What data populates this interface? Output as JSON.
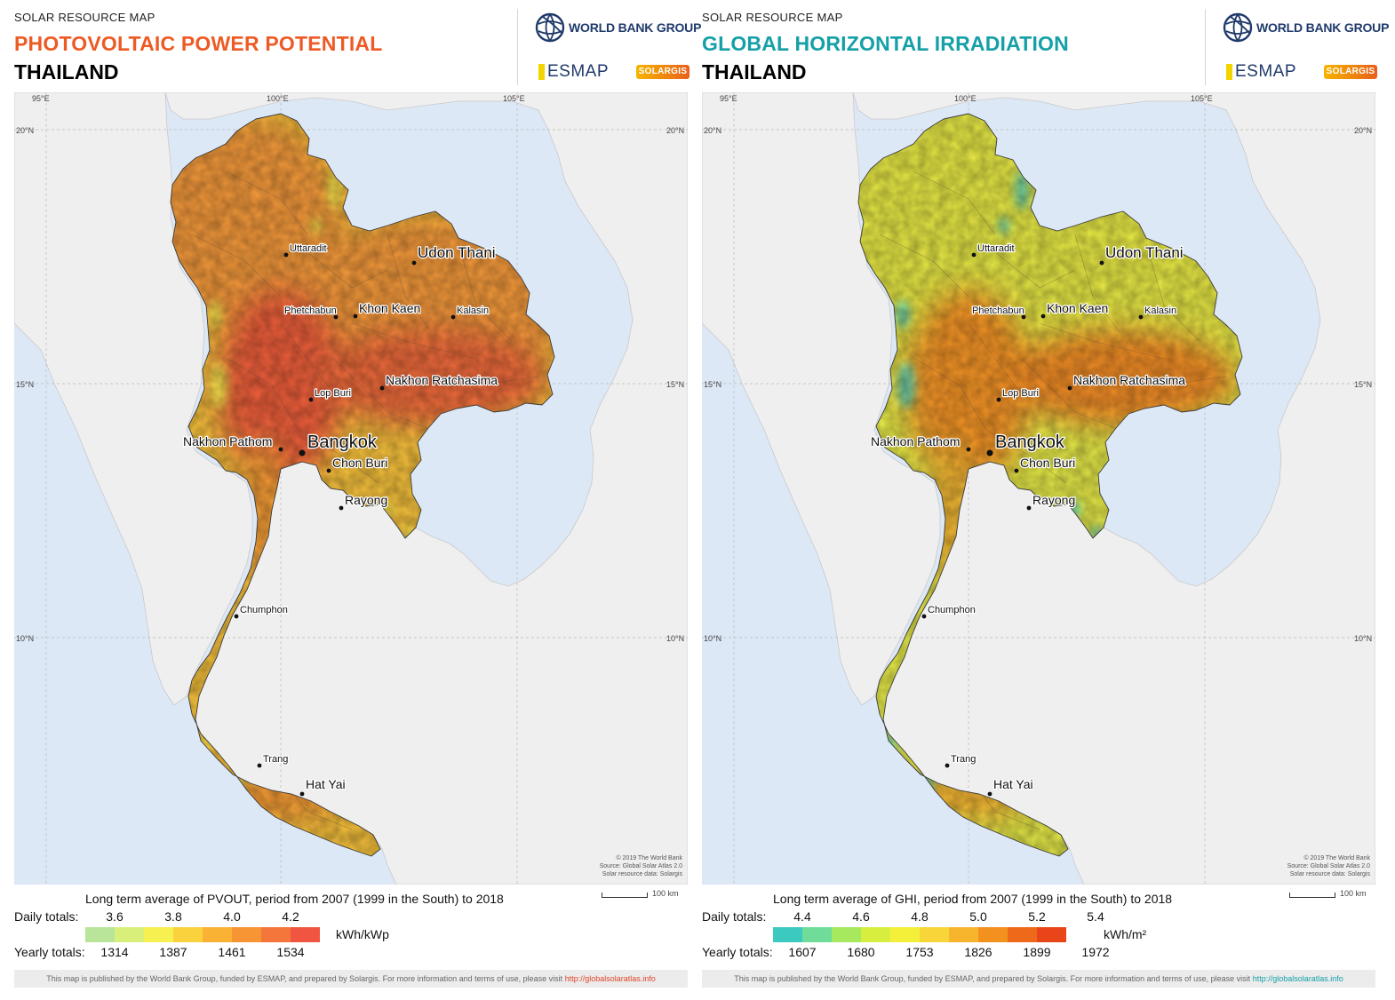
{
  "panels": [
    {
      "id": "pvout",
      "kicker": "SOLAR RESOURCE MAP",
      "title": "PHOTOVOLTAIC POWER POTENTIAL",
      "title_color": "#ee5a24",
      "country": "THAILAND",
      "legend": {
        "caption": "Long term average of PVOUT, period from 2007 (1999 in the South) to 2018",
        "daily_label": "Daily totals:",
        "yearly_label": "Yearly totals:",
        "daily_ticks": [
          "3.6",
          "3.8",
          "4.0",
          "4.2"
        ],
        "yearly_ticks": [
          "1314",
          "1387",
          "1461",
          "1534"
        ],
        "unit": "kWh/kWp",
        "colors": [
          "#b8e59a",
          "#d8f07a",
          "#f6f050",
          "#fad23e",
          "#f9b233",
          "#f79535",
          "#f5763a",
          "#ef5540"
        ],
        "tick_at_boundary": [
          1,
          3,
          5,
          7
        ]
      },
      "map_palette": {
        "north": "#f59a3a",
        "central": "#ef5f3a",
        "east": "#ee6a3a",
        "south": "#f7c23c",
        "south_hot": "#f49a35",
        "cool": "#f2e84e"
      }
    },
    {
      "id": "ghi",
      "kicker": "SOLAR RESOURCE MAP",
      "title": "GLOBAL HORIZONTAL IRRADIATION",
      "title_color": "#15a0a8",
      "country": "THAILAND",
      "legend": {
        "caption": "Long term average of GHI, period from 2007 (1999 in the South) to 2018",
        "daily_label": "Daily totals:",
        "yearly_label": "Yearly totals:",
        "daily_ticks": [
          "4.4",
          "4.6",
          "4.8",
          "5.0",
          "5.2",
          "5.4"
        ],
        "yearly_ticks": [
          "1607",
          "1680",
          "1753",
          "1826",
          "1899",
          "1972"
        ],
        "unit": "kWh/m²",
        "colors": [
          "#3cc9bf",
          "#6fdc9a",
          "#a6e85e",
          "#d8ee3e",
          "#f4f03a",
          "#f8d63a",
          "#f7b52e",
          "#f3911f",
          "#ee6a1a",
          "#e84618"
        ],
        "tick_at_boundary": [
          1,
          3,
          5,
          7,
          9,
          11
        ]
      },
      "map_palette": {
        "north": "#e9ea45",
        "central": "#f59525",
        "east": "#f28d25",
        "south": "#e6ea48",
        "south_hot": "#f2b333",
        "cool": "#58cfb8"
      }
    }
  ],
  "map": {
    "grid_lon": [
      "95°E",
      "100°E",
      "105°E"
    ],
    "grid_lat": [
      "20°N",
      "15°N",
      "10°N"
    ],
    "cities": [
      {
        "name": "Uttaradit",
        "size": "small"
      },
      {
        "name": "Udon Thani",
        "size": "large"
      },
      {
        "name": "Phetchabun",
        "size": "small"
      },
      {
        "name": "Khon Kaen",
        "size": "medium"
      },
      {
        "name": "Kalasin",
        "size": "small"
      },
      {
        "name": "Nakhon Ratchasima",
        "size": "medium"
      },
      {
        "name": "Lop Buri",
        "size": "small"
      },
      {
        "name": "Nakhon Pathom",
        "size": "medium"
      },
      {
        "name": "Bangkok",
        "size": "xlarge"
      },
      {
        "name": "Chon Buri",
        "size": "medium"
      },
      {
        "name": "Rayong",
        "size": "medium"
      },
      {
        "name": "Chumphon",
        "size": "small"
      },
      {
        "name": "Trang",
        "size": "small"
      },
      {
        "name": "Hat Yai",
        "size": "medium"
      }
    ],
    "attribution": [
      "© 2019 The World Bank",
      "Source: Global Solar Atlas 2.0",
      "Solar resource data: Solargis"
    ],
    "scale_label": "100 km"
  },
  "branding": {
    "world_bank": "WORLD BANK GROUP",
    "esmap": "ESMAP",
    "solargis": "SOLARGIS",
    "globe_icon": "globe-icon"
  },
  "footer": {
    "text": "This map is published by the World Bank Group, funded by ESMAP, and prepared by Solargis. For more information and terms of use, please visit ",
    "link": "http://globalsolaratlas.info"
  }
}
